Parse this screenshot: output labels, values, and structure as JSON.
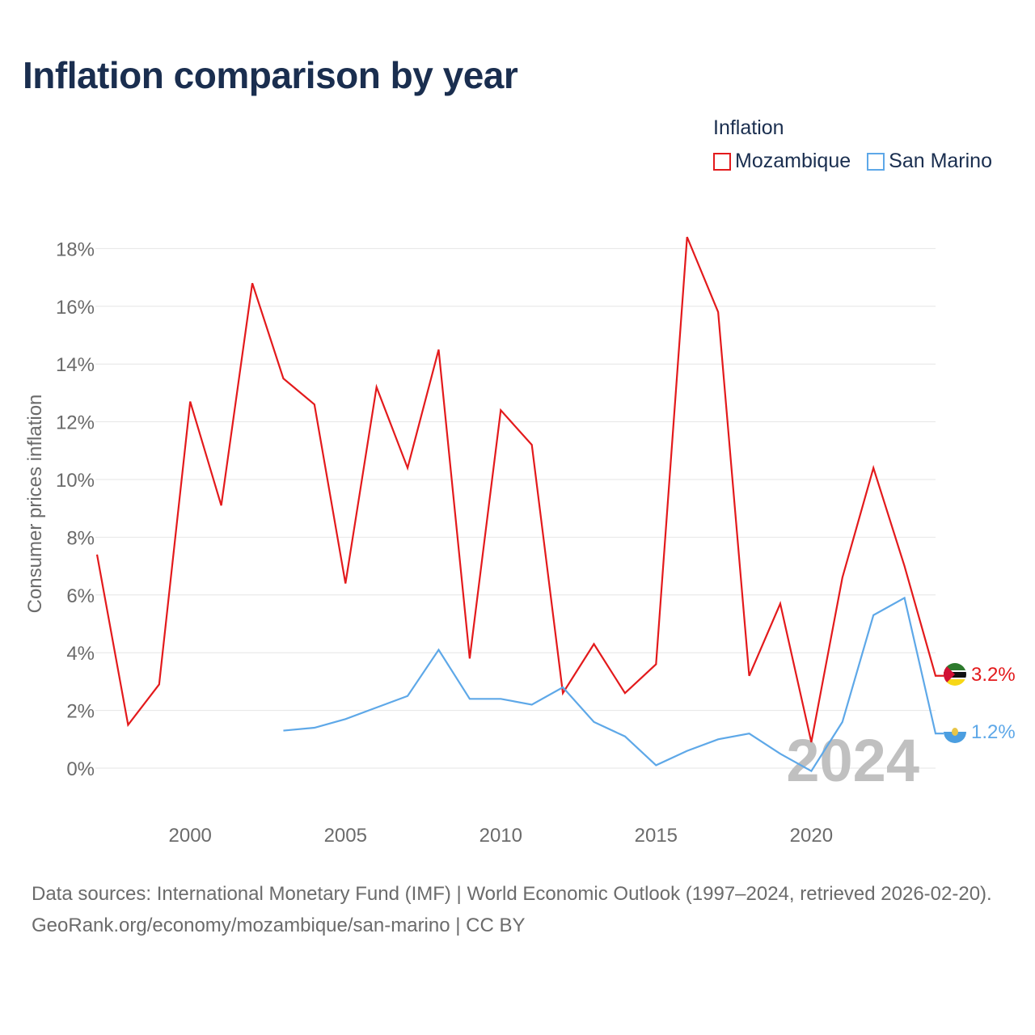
{
  "title": "Inflation comparison by year",
  "legend": {
    "title": "Inflation",
    "items": [
      {
        "label": "Mozambique",
        "color": "#e31a1c"
      },
      {
        "label": "San Marino",
        "color": "#5ea8e8"
      }
    ]
  },
  "year_watermark": "2024",
  "footer": {
    "sources": "Data sources: International Monetary Fund (IMF) | World Economic Outlook (1997–2024, retrieved 2026-02-20).",
    "link": "GeoRank.org/economy/mozambique/san-marino | CC BY"
  },
  "chart_data": {
    "type": "line",
    "title": "Inflation comparison by year",
    "xlabel": "",
    "ylabel": "Consumer prices inflation",
    "xlim": [
      1997,
      2024
    ],
    "ylim": [
      -1,
      18.5
    ],
    "x_ticks": [
      2000,
      2005,
      2010,
      2015,
      2020
    ],
    "y_ticks": [
      0,
      2,
      4,
      6,
      8,
      10,
      12,
      14,
      16,
      18
    ],
    "y_tick_labels": [
      "0%",
      "2%",
      "4%",
      "6%",
      "8%",
      "10%",
      "12%",
      "14%",
      "16%",
      "18%"
    ],
    "grid": true,
    "legend_position": "top-right",
    "series": [
      {
        "name": "Mozambique",
        "color": "#e31a1c",
        "end_label": "3.2%",
        "x": [
          1997,
          1998,
          1999,
          2000,
          2001,
          2002,
          2003,
          2004,
          2005,
          2006,
          2007,
          2008,
          2009,
          2010,
          2011,
          2012,
          2013,
          2014,
          2015,
          2016,
          2017,
          2018,
          2019,
          2020,
          2021,
          2022,
          2023,
          2024
        ],
        "values": [
          7.4,
          1.5,
          2.9,
          12.7,
          9.1,
          16.8,
          13.5,
          12.6,
          6.4,
          13.2,
          10.4,
          14.5,
          3.8,
          12.4,
          11.2,
          2.6,
          4.3,
          2.6,
          3.6,
          18.4,
          15.8,
          3.2,
          5.7,
          0.9,
          6.6,
          10.4,
          7.0,
          3.2
        ]
      },
      {
        "name": "San Marino",
        "color": "#5ea8e8",
        "end_label": "1.2%",
        "x": [
          2003,
          2004,
          2005,
          2006,
          2007,
          2008,
          2009,
          2010,
          2011,
          2012,
          2013,
          2014,
          2015,
          2016,
          2017,
          2018,
          2019,
          2020,
          2021,
          2022,
          2023,
          2024
        ],
        "values": [
          1.3,
          1.4,
          1.7,
          2.1,
          2.5,
          4.1,
          2.4,
          2.4,
          2.2,
          2.8,
          1.6,
          1.1,
          0.1,
          0.6,
          1.0,
          1.2,
          0.5,
          -0.1,
          1.6,
          5.3,
          5.9,
          1.2
        ]
      }
    ]
  }
}
